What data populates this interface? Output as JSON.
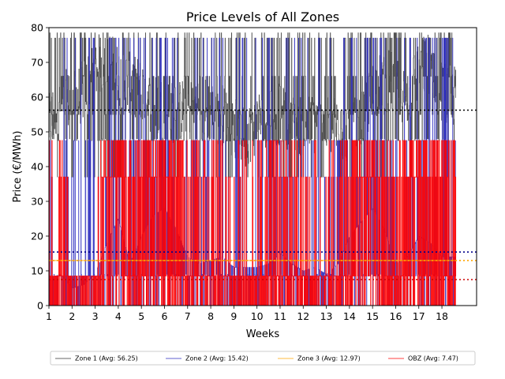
{
  "chart_data": {
    "type": "line",
    "title": "Price Levels of All Zones",
    "xlabel": "Weeks",
    "ylabel": "Price (€/MWh)",
    "xlim": [
      1,
      19.5
    ],
    "ylim": [
      0,
      80
    ],
    "xticks": [
      "1",
      "2",
      "3",
      "4",
      "5",
      "6",
      "7",
      "8",
      "9",
      "10",
      "11",
      "12",
      "13",
      "14",
      "15",
      "16",
      "17",
      "18"
    ],
    "yticks": [
      "0",
      "10",
      "20",
      "30",
      "40",
      "50",
      "60",
      "70",
      "80"
    ],
    "grid": false,
    "legend_position": "bottom-center",
    "series": [
      {
        "name": "Zone 1 (Avg: 56.25)",
        "color": "#333333",
        "average": 56.25,
        "avg_line_color": "#000000",
        "level_weeks": [
          1,
          1.5,
          2,
          2.5,
          3,
          3.5,
          4,
          4.5,
          5,
          5.5,
          6,
          6.5,
          7,
          7.5,
          8,
          8.5,
          9,
          9.5,
          10,
          10.5,
          11,
          11.5,
          12,
          12.5,
          13,
          13.5,
          14,
          14.5,
          15,
          15.5,
          16,
          16.5,
          17,
          17.5,
          18,
          18.6
        ],
        "levels": [
          52,
          60,
          58,
          62,
          68,
          72,
          66,
          64,
          62,
          58,
          57,
          55,
          58,
          58,
          56,
          55,
          51,
          48,
          53,
          55,
          55,
          52,
          52,
          52,
          52,
          51,
          50,
          52,
          62,
          65,
          64,
          60,
          68,
          70,
          62,
          60
        ],
        "range": [
          35,
          79.5
        ]
      },
      {
        "name": "Zone 2 (Avg: 15.42)",
        "color": "#2b2bbf",
        "average": 15.42,
        "avg_line_color": "#00008b",
        "level_weeks": [
          1,
          1.5,
          2,
          2.5,
          3,
          3.5,
          4,
          4.5,
          5,
          5.5,
          6,
          6.5,
          7,
          7.5,
          8,
          8.5,
          9,
          9.5,
          10,
          10.5,
          11,
          11.5,
          12,
          12.5,
          13,
          13.5,
          14,
          14.5,
          15,
          15.5,
          16,
          16.5,
          17,
          17.5,
          18,
          18.6
        ],
        "levels": [
          8,
          9,
          5,
          6,
          9,
          18,
          25,
          12,
          20,
          26,
          28,
          22,
          14,
          12,
          13,
          14,
          11,
          11,
          11,
          12,
          15,
          12,
          10,
          11,
          9,
          12,
          20,
          24,
          28,
          22,
          12,
          14,
          20,
          18,
          14,
          14
        ],
        "range": [
          0,
          78
        ]
      },
      {
        "name": "Zone 3 (Avg: 12.97)",
        "color": "#ffa500",
        "average": 12.97,
        "avg_line_color": "#ffa500",
        "level_weeks": [
          1,
          18.6
        ],
        "levels": [
          12.97,
          12.97
        ],
        "range": [
          12.97,
          12.97
        ]
      },
      {
        "name": "OBZ (Avg: 7.47)",
        "color": "#ff0000",
        "average": 7.47,
        "avg_line_color": "#cc0000",
        "level_weeks": [
          1,
          1.5,
          2,
          2.5,
          3,
          3.5,
          4,
          4.5,
          5,
          5.5,
          6,
          6.5,
          7,
          7.5,
          8,
          8.5,
          9,
          9.5,
          10,
          10.5,
          11,
          11.5,
          12,
          12.5,
          13,
          13.5,
          14,
          14.5,
          15,
          15.5,
          16,
          16.5,
          17,
          17.5,
          18,
          18.6
        ],
        "levels": [
          3,
          8,
          0,
          0,
          2,
          18,
          20,
          8,
          12,
          14,
          16,
          14,
          6,
          10,
          7,
          8,
          6,
          6,
          6,
          7,
          9,
          8,
          6,
          7,
          4,
          6,
          12,
          20,
          18,
          14,
          8,
          12,
          22,
          16,
          12,
          12
        ],
        "range": [
          0,
          48
        ]
      }
    ]
  }
}
